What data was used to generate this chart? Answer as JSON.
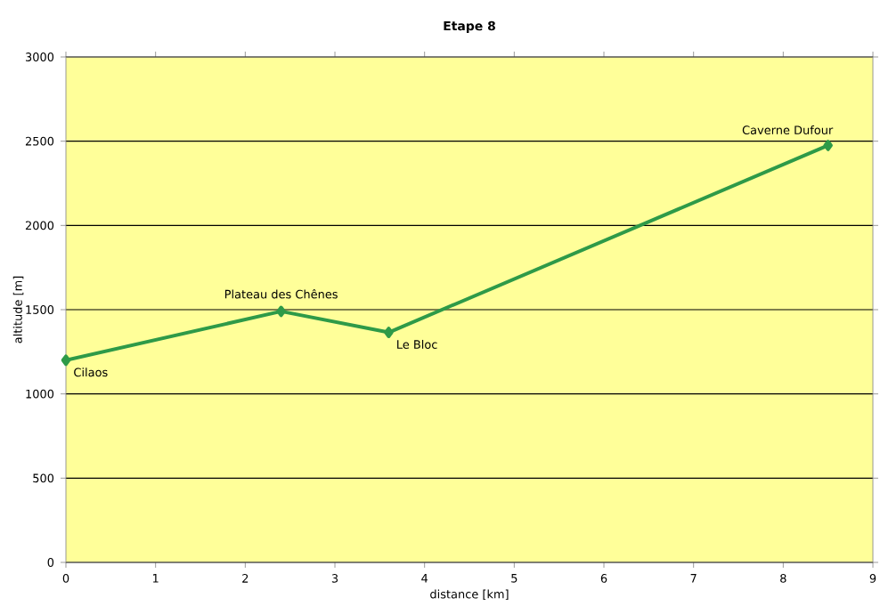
{
  "chart_data": {
    "type": "line",
    "title": "Etape 8",
    "xlabel": "distance [km]",
    "ylabel": "altitude [m]",
    "x": [
      0,
      2.4,
      3.6,
      8.5
    ],
    "series": [
      {
        "color": "#2e9a48",
        "values": [
          1200,
          1490,
          1365,
          2475
        ]
      }
    ],
    "xlim": [
      0,
      9
    ],
    "ylim": [
      0,
      3000
    ],
    "xticks": [
      0,
      1,
      2,
      3,
      4,
      5,
      6,
      7,
      8,
      9
    ],
    "yticks": [
      0,
      500,
      1000,
      1500,
      2000,
      2500,
      3000
    ],
    "grid": "y",
    "marker": "diamond",
    "line_style": "solid",
    "annotations": [
      {
        "text": "Cilaos",
        "x": 0,
        "y": 1200
      },
      {
        "text": "Plateau des Chênes",
        "x": 2.4,
        "y": 1490
      },
      {
        "text": "Le Bloc",
        "x": 3.6,
        "y": 1365
      },
      {
        "text": "Caverne Dufour",
        "x": 8.5,
        "y": 2475
      }
    ]
  }
}
